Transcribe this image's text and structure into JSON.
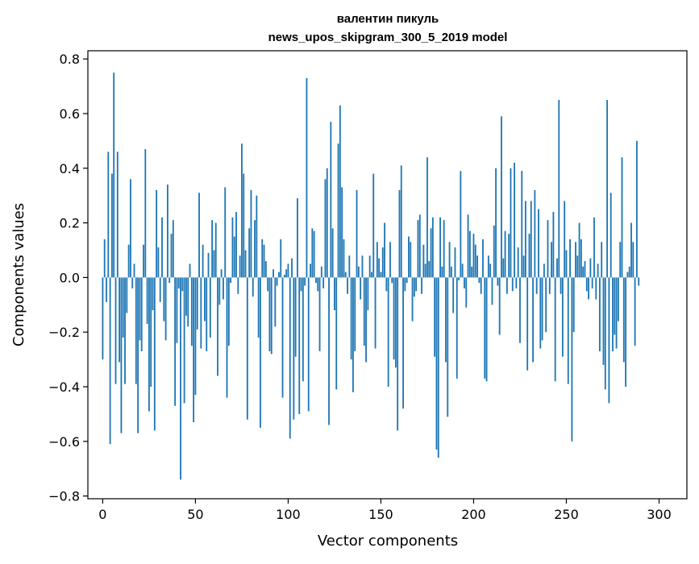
{
  "chart_data": {
    "type": "bar",
    "title_line1": "валентин пикуль",
    "title_line2": "news_upos_skipgram_300_5_2019 model",
    "xlabel": "Vector components",
    "ylabel": "Components values",
    "xlim": [
      -8,
      315
    ],
    "ylim": [
      -0.81,
      0.83
    ],
    "xticks": [
      0,
      50,
      100,
      150,
      200,
      250,
      300
    ],
    "yticks": [
      -0.8,
      -0.6,
      -0.4,
      -0.2,
      0.0,
      0.2,
      0.4,
      0.6,
      0.8
    ],
    "x_tick_labels": [
      "0",
      "50",
      "100",
      "150",
      "200",
      "250",
      "300"
    ],
    "y_tick_labels": [
      "−0.8",
      "−0.6",
      "−0.4",
      "−0.2",
      "0.0",
      "0.2",
      "0.4",
      "0.6",
      "0.8"
    ],
    "bar_color": "#1f77b4",
    "values": [
      -0.3,
      0.14,
      -0.09,
      0.46,
      -0.61,
      0.38,
      0.75,
      -0.39,
      0.46,
      -0.31,
      -0.57,
      -0.22,
      -0.39,
      -0.13,
      0.12,
      0.36,
      -0.04,
      0.05,
      -0.39,
      -0.57,
      -0.23,
      -0.27,
      0.12,
      0.47,
      -0.17,
      -0.49,
      -0.4,
      -0.12,
      -0.56,
      0.32,
      0.11,
      -0.09,
      0.22,
      -0.16,
      -0.23,
      0.34,
      -0.02,
      0.16,
      0.21,
      -0.47,
      -0.24,
      -0.04,
      -0.74,
      -0.05,
      -0.46,
      -0.14,
      -0.18,
      0.05,
      -0.25,
      -0.53,
      -0.43,
      -0.19,
      0.31,
      -0.26,
      0.12,
      -0.16,
      -0.27,
      0.09,
      -0.22,
      0.21,
      0.1,
      0.2,
      -0.36,
      -0.1,
      0.03,
      -0.08,
      0.33,
      -0.44,
      -0.25,
      -0.02,
      0.22,
      0.15,
      0.24,
      -0.06,
      0.08,
      0.49,
      0.38,
      0.1,
      -0.52,
      0.18,
      0.32,
      -0.07,
      0.21,
      0.3,
      -0.22,
      -0.55,
      0.14,
      0.12,
      0.06,
      -0.05,
      -0.27,
      -0.28,
      0.03,
      -0.18,
      -0.03,
      0.02,
      0.14,
      -0.44,
      0.01,
      0.03,
      0.05,
      -0.59,
      0.07,
      -0.52,
      -0.29,
      0.29,
      -0.5,
      -0.05,
      -0.38,
      -0.03,
      0.73,
      -0.49,
      0.05,
      0.18,
      0.17,
      -0.02,
      -0.05,
      -0.27,
      0.04,
      -0.04,
      0.36,
      0.4,
      -0.54,
      0.57,
      0.18,
      -0.12,
      -0.41,
      0.49,
      0.63,
      0.33,
      0.14,
      0.02,
      -0.06,
      0.08,
      -0.3,
      -0.42,
      -0.27,
      0.32,
      0.04,
      -0.08,
      0.08,
      -0.25,
      -0.31,
      -0.12,
      0.08,
      0.02,
      0.38,
      -0.26,
      0.13,
      0.07,
      0.02,
      0.11,
      0.2,
      -0.05,
      -0.4,
      0.13,
      -0.02,
      -0.3,
      -0.33,
      -0.56,
      0.32,
      0.41,
      -0.48,
      -0.05,
      -0.02,
      0.15,
      0.13,
      -0.16,
      -0.07,
      -0.05,
      0.21,
      0.23,
      -0.06,
      0.12,
      0.05,
      0.44,
      0.06,
      0.18,
      0.22,
      -0.29,
      -0.63,
      -0.66,
      0.22,
      0.04,
      0.21,
      -0.31,
      -0.51,
      0.13,
      0.04,
      -0.13,
      0.11,
      -0.37,
      -0.01,
      0.39,
      0.05,
      -0.04,
      -0.11,
      0.23,
      0.17,
      0.04,
      0.16,
      0.12,
      0.08,
      -0.02,
      -0.06,
      0.14,
      -0.37,
      -0.38,
      0.08,
      0.05,
      -0.1,
      0.19,
      0.4,
      -0.03,
      -0.21,
      0.59,
      0.07,
      0.17,
      -0.06,
      0.16,
      0.4,
      -0.05,
      0.42,
      -0.04,
      0.11,
      -0.24,
      0.39,
      0.08,
      0.28,
      -0.34,
      0.16,
      0.28,
      -0.31,
      0.32,
      -0.06,
      0.25,
      -0.26,
      -0.23,
      0.05,
      -0.2,
      0.21,
      -0.06,
      0.13,
      0.24,
      -0.38,
      0.07,
      0.65,
      -0.06,
      -0.29,
      0.28,
      0.1,
      -0.39,
      0.14,
      -0.6,
      -0.2,
      0.13,
      0.08,
      0.2,
      0.14,
      0.04,
      0.06,
      -0.05,
      -0.08,
      0.07,
      -0.04,
      0.22,
      -0.08,
      0.05,
      -0.27,
      0.13,
      -0.32,
      -0.41,
      0.65,
      -0.46,
      0.31,
      -0.27,
      -0.21,
      -0.26,
      -0.16,
      0.13,
      0.44,
      -0.31,
      -0.4,
      0.02,
      0.04,
      0.2,
      0.13,
      -0.25,
      0.5,
      -0.03
    ]
  }
}
